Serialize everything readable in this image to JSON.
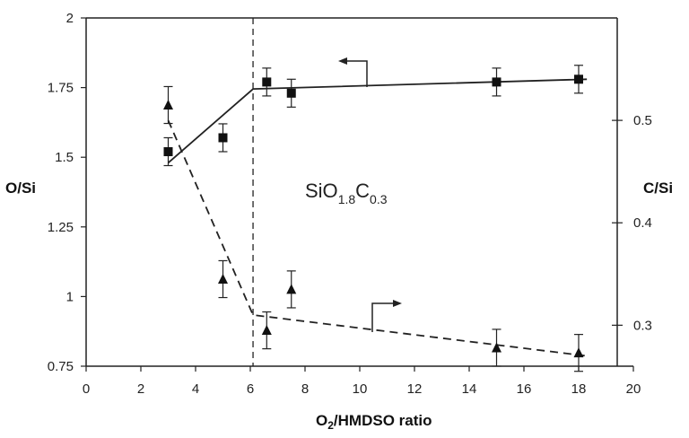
{
  "chart_data": {
    "type": "scatter",
    "xlabel_main": "O",
    "xlabel_sub": "2",
    "xlabel_rest": "/HMDSO ratio",
    "ylabel_left": "O/Si",
    "ylabel_right": "C/Si",
    "xlim": [
      0,
      20
    ],
    "ylim_left": [
      0.75,
      2
    ],
    "ylim_right": [
      0.26,
      0.6
    ],
    "x_ticks": [
      "0",
      "2",
      "4",
      "6",
      "8",
      "10",
      "12",
      "14",
      "16",
      "18",
      "20"
    ],
    "y_left_ticks": [
      "0.75",
      "1",
      "1.25",
      "1.5",
      "1.75",
      "2"
    ],
    "y_right_ticks": [
      "0.3",
      "0.4",
      "0.5"
    ],
    "vertical_line_x": 6.1,
    "annotation": {
      "base": "SiO",
      "sub1": "1.8",
      "mid": "C",
      "sub2": "0.3"
    },
    "series": [
      {
        "marker": "square",
        "axis": "left",
        "x": [
          3,
          5,
          6.6,
          7.5,
          15,
          18
        ],
        "y": [
          1.52,
          1.57,
          1.77,
          1.73,
          1.77,
          1.78
        ],
        "err": [
          0.05,
          0.05,
          0.05,
          0.05,
          0.05,
          0.05
        ],
        "fit": [
          [
            3,
            1.48
          ],
          [
            6.1,
            1.745
          ],
          [
            18.3,
            1.78
          ]
        ],
        "fit_style": "solid"
      },
      {
        "marker": "triangle",
        "axis": "right",
        "x": [
          3,
          5,
          6.6,
          7.5,
          15,
          18
        ],
        "y": [
          0.515,
          0.345,
          0.295,
          0.335,
          0.278,
          0.273
        ],
        "err": [
          0.018,
          0.018,
          0.018,
          0.018,
          0.018,
          0.018
        ],
        "fit": [
          [
            3,
            0.5
          ],
          [
            6.1,
            0.31
          ],
          [
            18.3,
            0.27
          ]
        ],
        "fit_style": "dashed"
      }
    ]
  }
}
